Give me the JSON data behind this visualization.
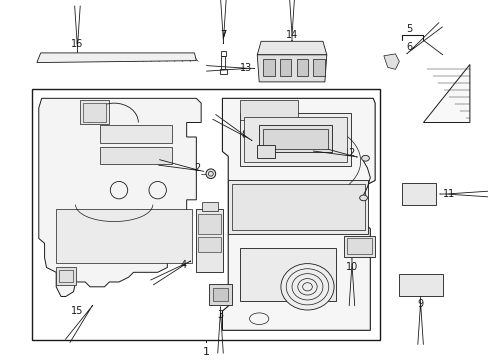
{
  "bg_color": "#ffffff",
  "lc": "#1a1a1a",
  "fig_w": 4.89,
  "fig_h": 3.6,
  "dpi": 100
}
